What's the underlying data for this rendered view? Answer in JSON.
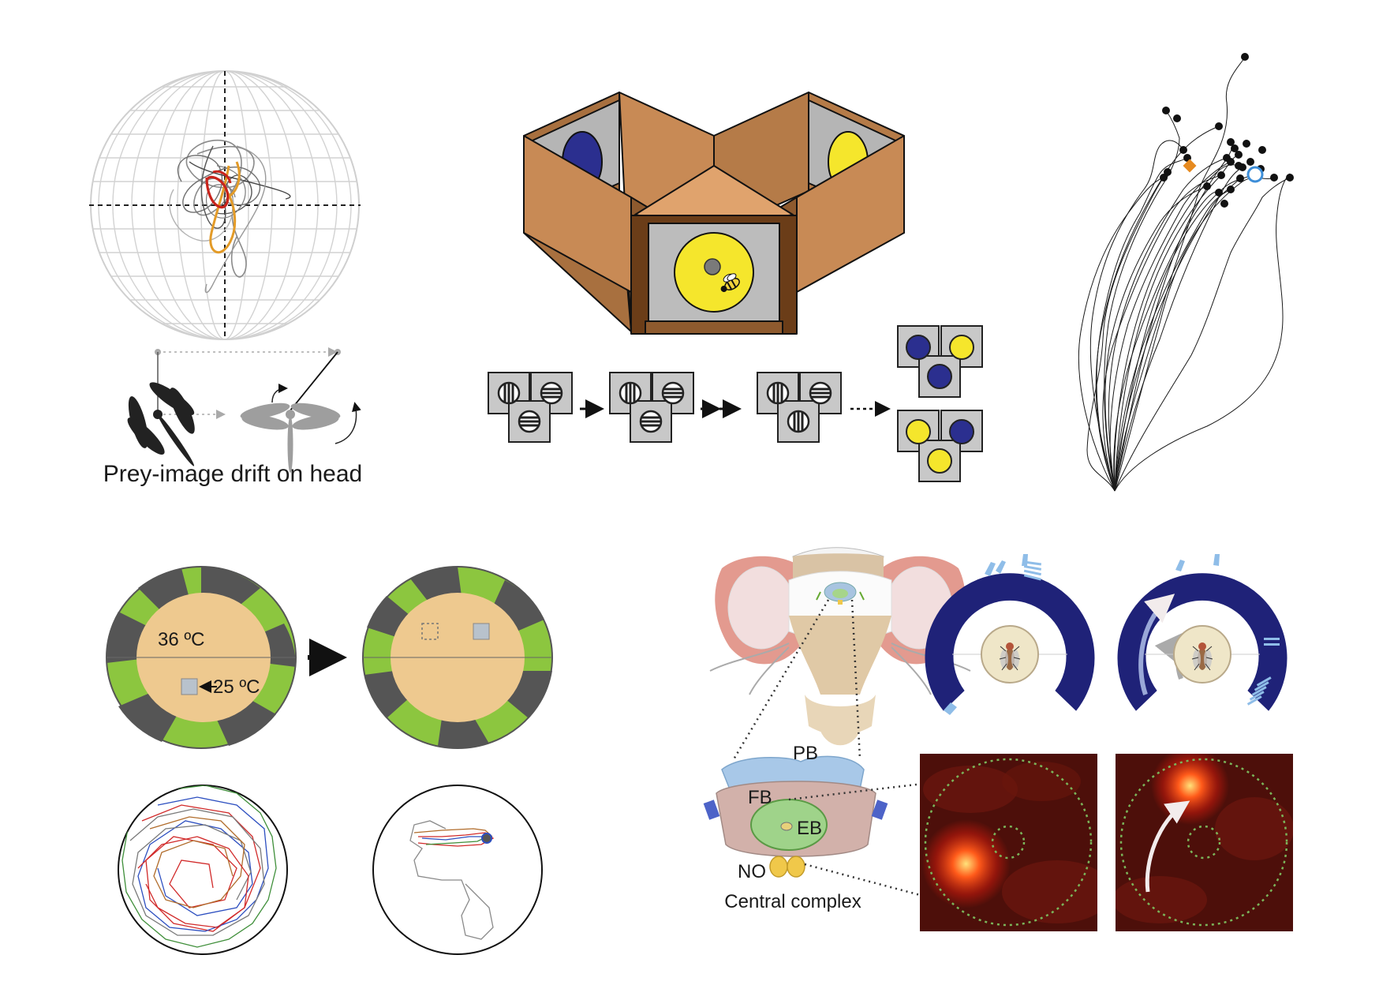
{
  "panel_dragonfly": {
    "caption": "Prey-image drift on head"
  },
  "panel_temperature": {
    "hot_temp": "36 ºC",
    "cool_temp": "25 ºC"
  },
  "panel_brain": {
    "region_pb": "PB",
    "region_fb": "FB",
    "region_eb": "EB",
    "region_no": "NO",
    "caption": "Central complex"
  },
  "colors": {
    "box_wood": "#c88a55",
    "target_yellow": "#f5e62c",
    "target_blue": "#2b2f8f",
    "arena_green": "#8cc63f",
    "arena_dark": "#555555",
    "arena_floor": "#eec98f",
    "ring_navy": "#1f2278",
    "ring_light": "#8fbde8"
  },
  "icons": [
    "dragonfly-icon",
    "bee-icon",
    "fly-icon",
    "arrow-icon"
  ]
}
